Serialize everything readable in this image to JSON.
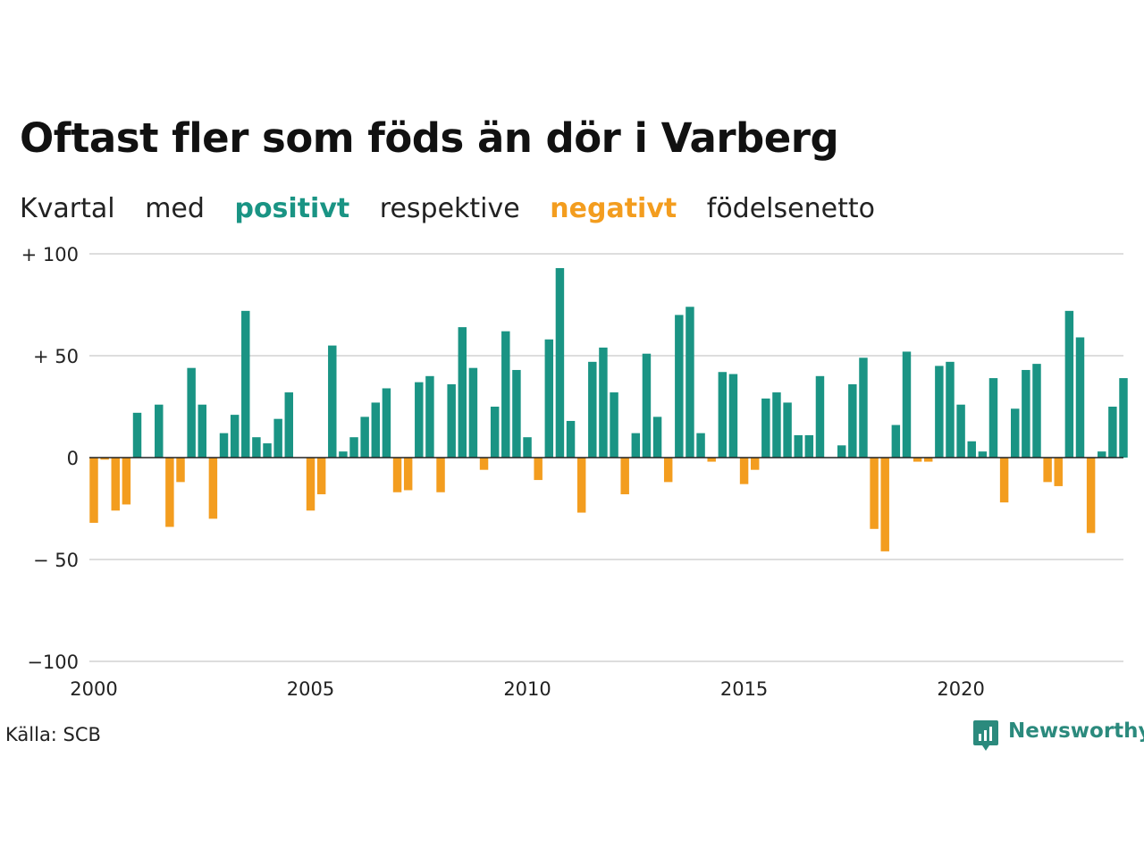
{
  "title": "Oftast fler som föds än dör i Varberg",
  "subtitle": {
    "part1": "Kvartal",
    "part2": "med",
    "positive": "positivt",
    "part3": "respektive",
    "negative": "negativt",
    "part4": "födelsenetto"
  },
  "source": "Källa: SCB",
  "brand": "Newsworthy",
  "colors": {
    "positive": "#1a9484",
    "negative": "#f39d1f",
    "grid": "#dddddd"
  },
  "chart_data": {
    "type": "bar",
    "x_start": 2000,
    "periods_per_year": 4,
    "yticks": [
      {
        "value": 100,
        "label": "+ 100"
      },
      {
        "value": 50,
        "label": "+  50"
      },
      {
        "value": 0,
        "label": "0"
      },
      {
        "value": -50,
        "label": "− 50"
      },
      {
        "value": -100,
        "label": "−100"
      }
    ],
    "xticks": [
      2000,
      2005,
      2010,
      2015,
      2020
    ],
    "ylim": [
      -100,
      100
    ],
    "xlim": [
      2000,
      2023.75
    ],
    "values": [
      -32,
      -1,
      -26,
      -23,
      22,
      0,
      26,
      -34,
      -12,
      44,
      26,
      -30,
      12,
      21,
      72,
      10,
      7,
      19,
      32,
      0,
      -26,
      -18,
      55,
      3,
      10,
      20,
      27,
      34,
      -17,
      -16,
      37,
      40,
      -17,
      36,
      64,
      44,
      -6,
      25,
      62,
      43,
      10,
      -11,
      58,
      93,
      18,
      -27,
      47,
      54,
      32,
      -18,
      12,
      51,
      20,
      -12,
      70,
      74,
      12,
      -2,
      42,
      41,
      -13,
      -6,
      29,
      32,
      27,
      11,
      11,
      40,
      0,
      6,
      36,
      49,
      -35,
      -46,
      16,
      52,
      -2,
      -2,
      45,
      47,
      26,
      8,
      3,
      39,
      -22,
      24,
      43,
      46,
      -12,
      -14,
      72,
      59,
      -37,
      3,
      25,
      39
    ]
  }
}
